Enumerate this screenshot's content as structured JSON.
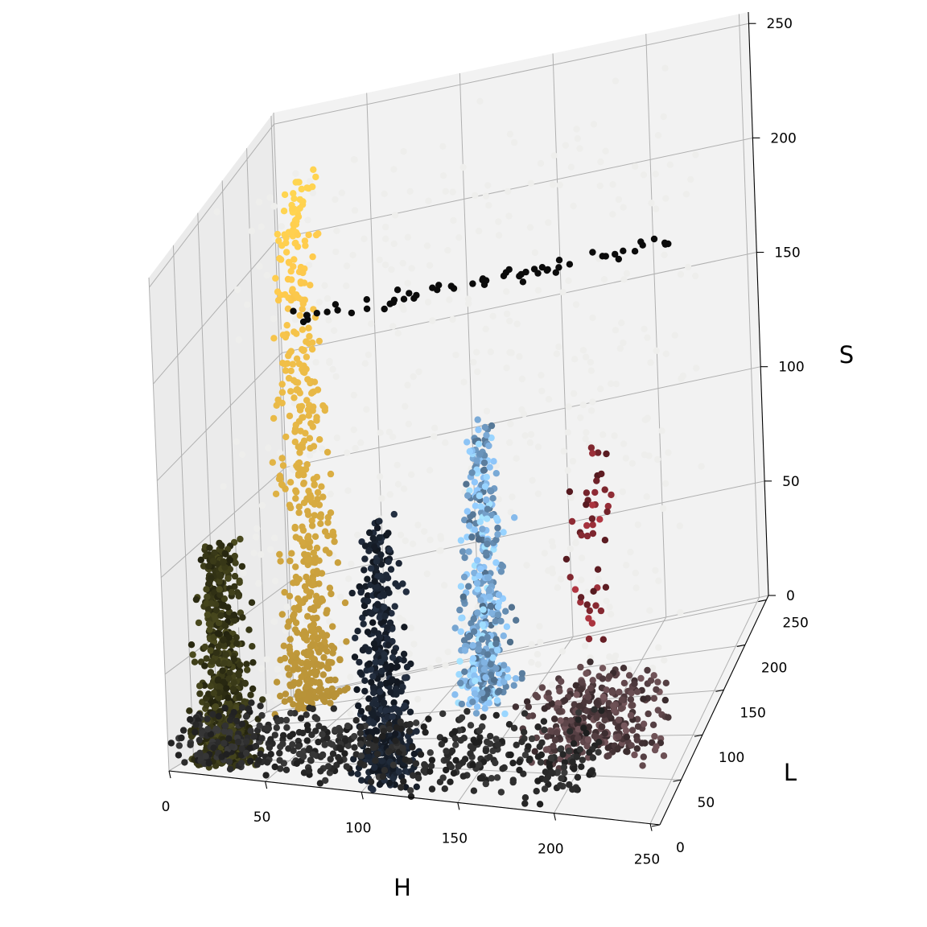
{
  "chart_data": {
    "type": "scatter",
    "title": "",
    "xlabel": "H",
    "ylabel": "L",
    "zlabel": "S",
    "xlim": [
      0,
      255
    ],
    "ylim": [
      0,
      255
    ],
    "zlim": [
      0,
      255
    ],
    "xticks": [
      "0",
      "50",
      "100",
      "150",
      "200",
      "250"
    ],
    "yticks": [
      "0",
      "50",
      "100",
      "150",
      "200",
      "250"
    ],
    "zticks": [
      "0",
      "50",
      "100",
      "150",
      "200",
      "250"
    ],
    "grid": true,
    "point_color": "rgb of each pixel",
    "clusters": [
      {
        "name": "",
        "h": 20,
        "l": 40,
        "s": [
          0,
          110
        ],
        "color": "#3a3a18"
      },
      {
        "name": "",
        "h": 30,
        "l": 180,
        "s": [
          5,
          240
        ],
        "color": "#f4c24a"
      },
      {
        "name": "",
        "h": 105,
        "l": 35,
        "s": [
          0,
          125
        ],
        "color": "#1c2533"
      },
      {
        "name": "",
        "h": 125,
        "l": 170,
        "s": [
          0,
          125
        ],
        "color": "#7fb0de"
      },
      {
        "name": "",
        "h": 205,
        "l": 80,
        "s": [
          0,
          40
        ],
        "color": "#5c4448"
      },
      {
        "name": "",
        "h": 200,
        "l": 110,
        "s": [
          40,
          130
        ],
        "color": "#8a2a33"
      }
    ],
    "dark_band": {
      "s": 165,
      "h": [
        0,
        210
      ],
      "color": "#0b0b0b"
    }
  }
}
